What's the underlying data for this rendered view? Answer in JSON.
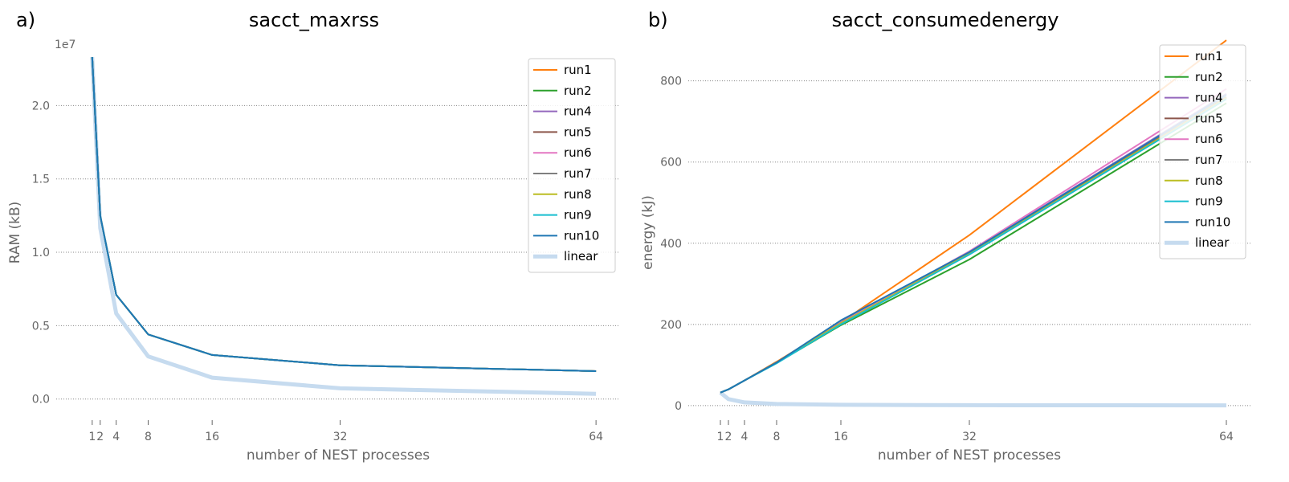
{
  "chart_data": [
    {
      "type": "line",
      "panel_label": "a)",
      "title": "sacct_maxrss",
      "xlabel": "number of NEST processes",
      "ylabel": "RAM (kB)",
      "offset_text": "1e7",
      "x_ticks": [
        1,
        2,
        4,
        8,
        16,
        32,
        64
      ],
      "y_ticks": [
        0.0,
        0.5,
        1.0,
        1.5,
        2.0
      ],
      "y_tick_labels": [
        "0.0",
        "0.5",
        "1.0",
        "1.5",
        "2.0"
      ],
      "xlim": [
        -3.5,
        67
      ],
      "ylim": [
        -0.1,
        2.5
      ],
      "grid": "y-dotted",
      "legend_position": "top-right",
      "x": [
        1,
        2,
        4,
        8,
        16,
        32,
        64
      ],
      "series": [
        {
          "name": "run1",
          "color": "#ff7f0e",
          "values": [
            2.33,
            1.25,
            0.71,
            0.44,
            0.3,
            0.23,
            0.19
          ]
        },
        {
          "name": "run2",
          "color": "#2ca02c",
          "values": [
            2.33,
            1.25,
            0.71,
            0.44,
            0.3,
            0.23,
            0.19
          ]
        },
        {
          "name": "run4",
          "color": "#9467bd",
          "values": [
            2.33,
            1.25,
            0.71,
            0.44,
            0.3,
            0.23,
            0.19
          ]
        },
        {
          "name": "run5",
          "color": "#8c564b",
          "values": [
            2.33,
            1.25,
            0.71,
            0.44,
            0.3,
            0.23,
            0.19
          ]
        },
        {
          "name": "run6",
          "color": "#e377c2",
          "values": [
            2.33,
            1.25,
            0.71,
            0.44,
            0.3,
            0.23,
            0.19
          ]
        },
        {
          "name": "run7",
          "color": "#7f7f7f",
          "values": [
            2.33,
            1.25,
            0.71,
            0.44,
            0.3,
            0.23,
            0.19
          ]
        },
        {
          "name": "run8",
          "color": "#bcbd22",
          "values": [
            2.33,
            1.25,
            0.71,
            0.44,
            0.3,
            0.23,
            0.19
          ]
        },
        {
          "name": "run9",
          "color": "#17becf",
          "values": [
            2.33,
            1.25,
            0.71,
            0.44,
            0.3,
            0.23,
            0.19
          ]
        },
        {
          "name": "run10",
          "color": "#1f77b4",
          "values": [
            2.33,
            1.25,
            0.71,
            0.44,
            0.3,
            0.23,
            0.19
          ]
        },
        {
          "name": "linear",
          "color": "#c6dbef",
          "thick": true,
          "values": [
            2.33,
            1.165,
            0.583,
            0.291,
            0.146,
            0.073,
            0.036
          ]
        }
      ]
    },
    {
      "type": "line",
      "panel_label": "b)",
      "title": "sacct_consumedenergy",
      "xlabel": "number of NEST processes",
      "ylabel": "energy (kJ)",
      "x_ticks": [
        1,
        2,
        4,
        8,
        16,
        32,
        64
      ],
      "y_ticks": [
        0,
        200,
        400,
        600,
        800
      ],
      "y_tick_labels": [
        "0",
        "200",
        "400",
        "600",
        "800"
      ],
      "xlim": [
        -3,
        67
      ],
      "ylim": [
        -20,
        920
      ],
      "grid": "y-dotted",
      "legend_position": "top-right",
      "x": [
        1,
        2,
        4,
        8,
        16,
        32,
        64
      ],
      "series": [
        {
          "name": "run1",
          "color": "#ff7f0e",
          "values": [
            32,
            40,
            62,
            108,
            205,
            420,
            900
          ]
        },
        {
          "name": "run2",
          "color": "#2ca02c",
          "values": [
            32,
            40,
            62,
            105,
            198,
            360,
            745
          ]
        },
        {
          "name": "run4",
          "color": "#9467bd",
          "values": [
            32,
            40,
            62,
            106,
            205,
            378,
            768
          ]
        },
        {
          "name": "run5",
          "color": "#8c564b",
          "values": [
            32,
            40,
            62,
            106,
            204,
            375,
            760
          ]
        },
        {
          "name": "run6",
          "color": "#e377c2",
          "values": [
            32,
            40,
            62,
            106,
            204,
            380,
            780
          ]
        },
        {
          "name": "run7",
          "color": "#7f7f7f",
          "values": [
            32,
            40,
            62,
            106,
            203,
            374,
            758
          ]
        },
        {
          "name": "run8",
          "color": "#bcbd22",
          "values": [
            32,
            40,
            62,
            106,
            203,
            374,
            758
          ]
        },
        {
          "name": "run9",
          "color": "#17becf",
          "values": [
            32,
            40,
            62,
            104,
            200,
            372,
            755
          ]
        },
        {
          "name": "run10",
          "color": "#1f77b4",
          "values": [
            32,
            40,
            62,
            106,
            210,
            378,
            765
          ]
        },
        {
          "name": "linear",
          "color": "#c6dbef",
          "thick": true,
          "values": [
            32,
            16,
            8,
            4,
            2,
            1,
            0.5
          ]
        }
      ]
    }
  ]
}
